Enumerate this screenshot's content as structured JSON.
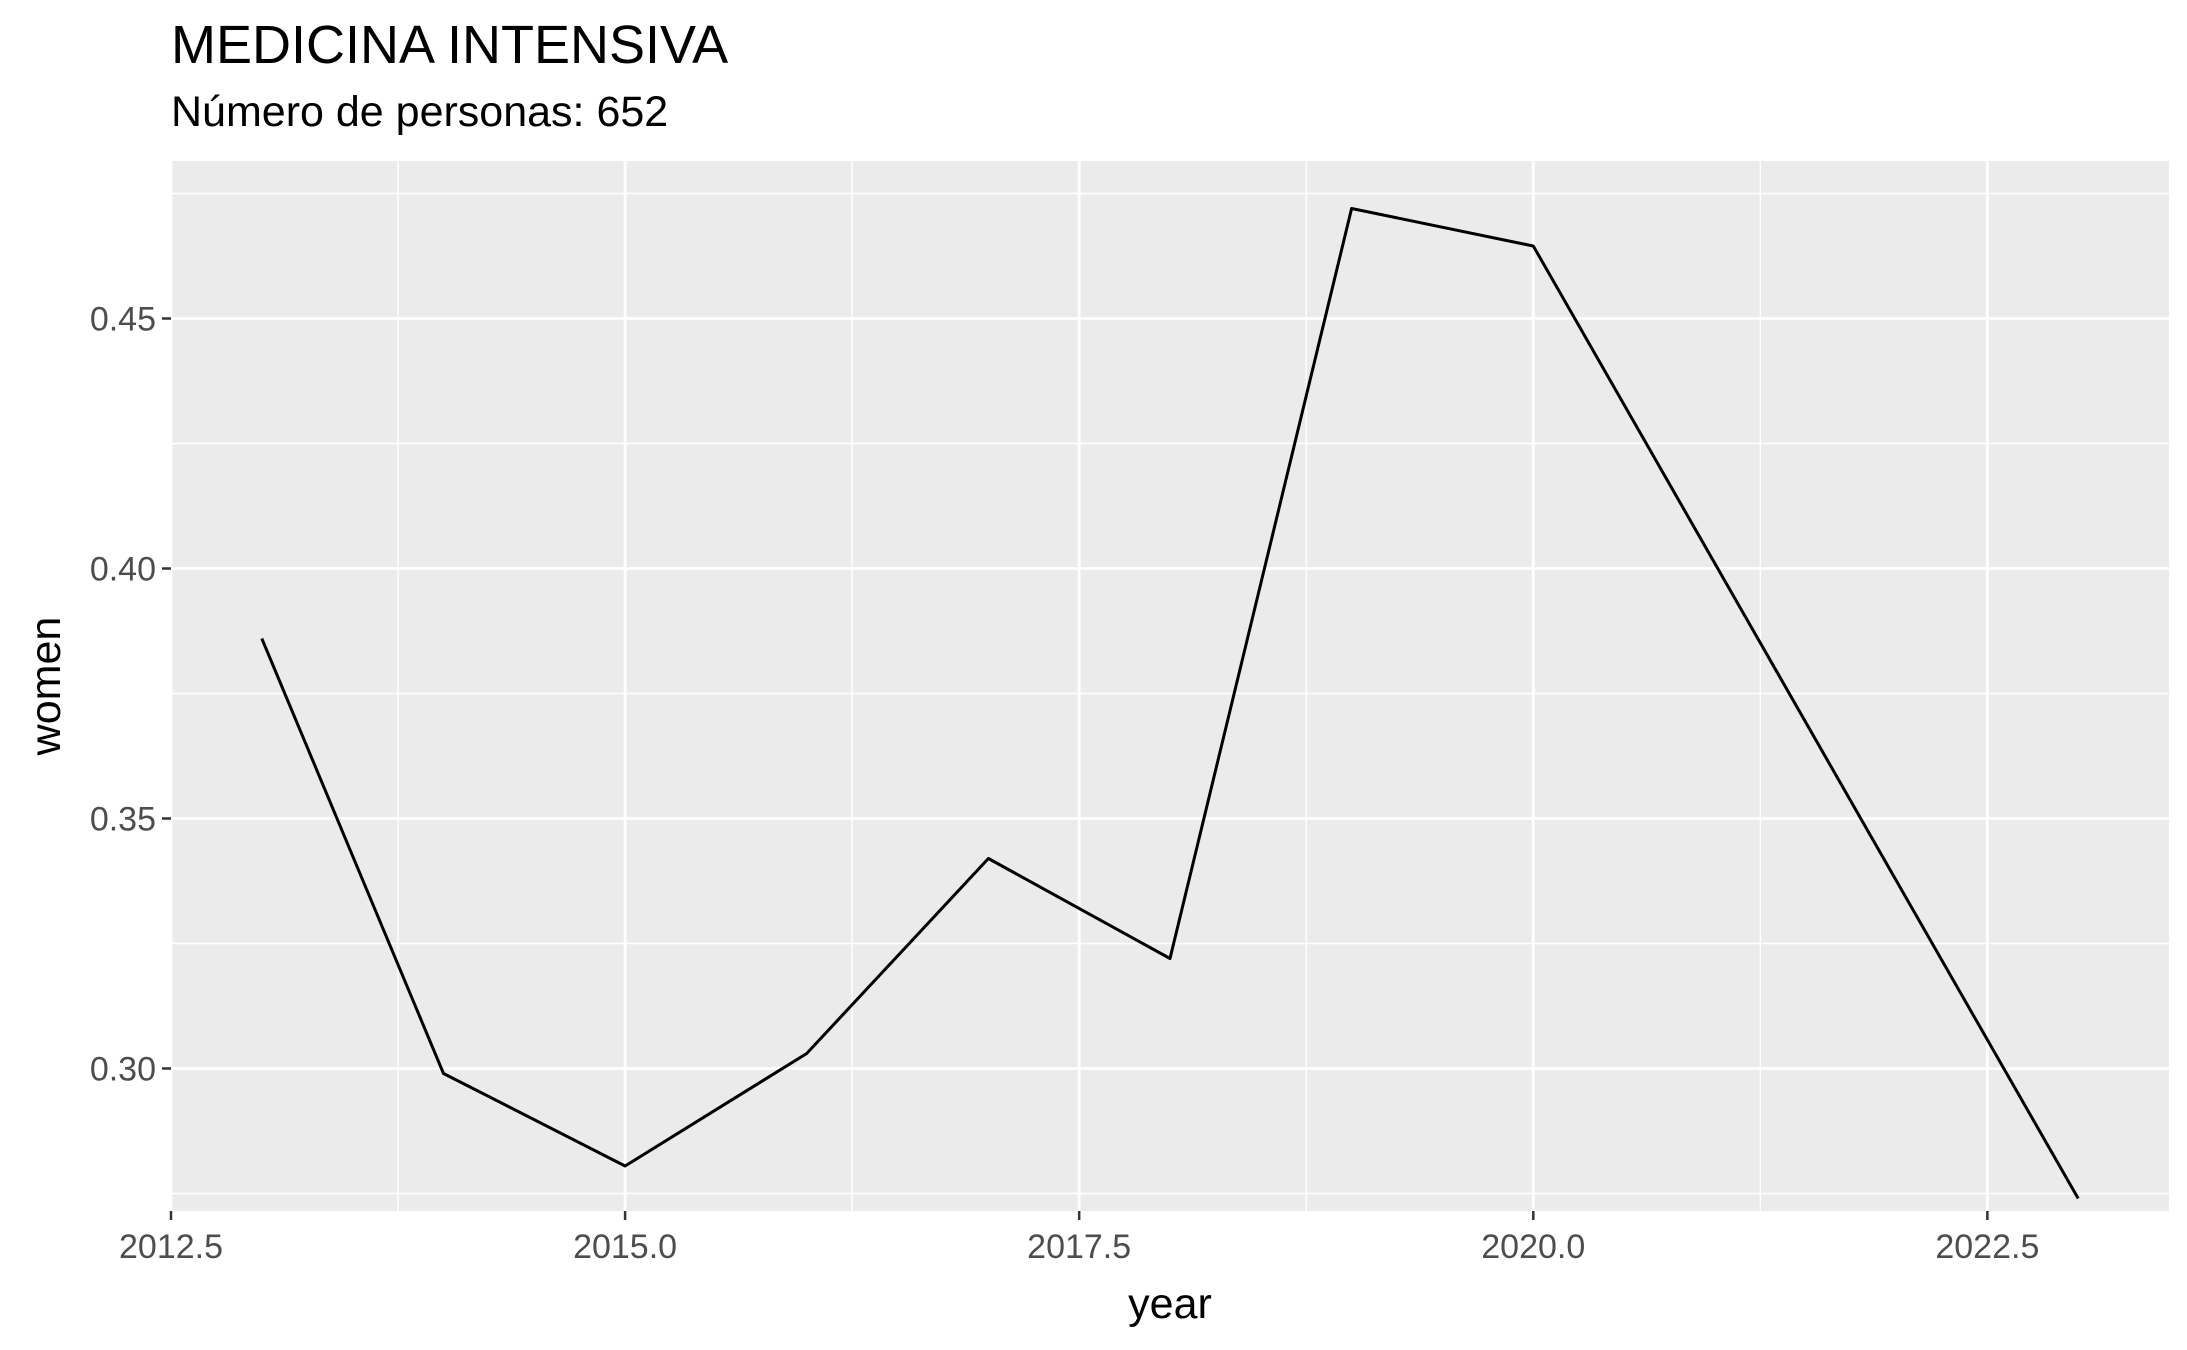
{
  "chart_data": {
    "type": "line",
    "title": "MEDICINA INTENSIVA",
    "subtitle": "Número de personas: 652",
    "xlabel": "year",
    "ylabel": "women",
    "xlim": [
      2012.5,
      2023.5
    ],
    "ylim": [
      0.2715,
      0.4815
    ],
    "x_ticks": [
      2012.5,
      2015.0,
      2017.5,
      2020.0,
      2022.5
    ],
    "x_tick_labels": [
      "2012.5",
      "2015.0",
      "2017.5",
      "2020.0",
      "2022.5"
    ],
    "y_ticks": [
      0.3,
      0.35,
      0.4,
      0.45
    ],
    "y_tick_labels": [
      "0.30",
      "0.35",
      "0.40",
      "0.45"
    ],
    "grid": true,
    "legend": "none",
    "colors": {
      "panel": "#ebebeb",
      "grid": "#ffffff",
      "line": "#000000",
      "tick_text": "#4d4d4d"
    },
    "series": [
      {
        "x": [
          2013,
          2014,
          2015,
          2016,
          2017,
          2018,
          2019,
          2020,
          2021,
          2022,
          2023
        ],
        "values": [
          0.386,
          0.299,
          0.2805,
          0.303,
          0.342,
          0.322,
          0.472,
          0.4645,
          0.401,
          0.3375,
          0.274
        ]
      }
    ]
  }
}
